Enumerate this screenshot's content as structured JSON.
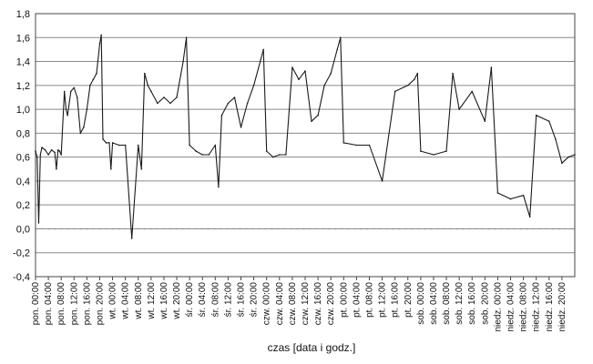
{
  "chart_data": {
    "type": "line",
    "xlabel": "czas [data i godz.]",
    "ylabel": "",
    "title": "",
    "ylim": [
      -0.4,
      1.8
    ],
    "y_ticks": [
      -0.4,
      -0.2,
      0.0,
      0.2,
      0.4,
      0.6,
      0.8,
      1.0,
      1.2,
      1.4,
      1.6,
      1.8
    ],
    "y_tick_labels": [
      "-0,4",
      "-0,2",
      "0,0",
      "0,2",
      "0,4",
      "0,6",
      "0,8",
      "1,0",
      "1,2",
      "1,4",
      "1,6",
      "1,8"
    ],
    "x_tick_labels": [
      "pon. 00:00",
      "pon. 04:00",
      "pon. 08:00",
      "pon. 12:00",
      "pon. 16:00",
      "pon. 20:00",
      "wt. 00:00",
      "wt. 04:00",
      "wt. 08:00",
      "wt. 12:00",
      "wt. 16:00",
      "wt. 20:00",
      "śr. 00:00",
      "śr. 04:00",
      "śr. 08:00",
      "śr. 12:00",
      "śr. 16:00",
      "śr. 20:00",
      "czw. 00:00",
      "czw. 04:00",
      "czw. 08:00",
      "czw. 12:00",
      "czw. 16:00",
      "czw. 20:00",
      "pt. 00:00",
      "pt. 04:00",
      "pt. 08:00",
      "pt. 12:00",
      "pt. 16:00",
      "pt. 20:00",
      "sob. 00:00",
      "sob. 04:00",
      "sob. 08:00",
      "sob. 12:00",
      "sob. 16:00",
      "sob. 20:00",
      "niedz. 00:00",
      "niedz. 04:00",
      "niedz. 08:00",
      "niedz. 12:00",
      "niedz. 16:00",
      "niedz. 20:00"
    ],
    "grid": true,
    "series": [
      {
        "x_hours": [
          0,
          0.5,
          1,
          1.5,
          2,
          3,
          4,
          5,
          6,
          6.5,
          7,
          7.5,
          8,
          9,
          9.5,
          10,
          11,
          12,
          13,
          14,
          15,
          16,
          17,
          18,
          19,
          20,
          20.5,
          21,
          22,
          23,
          23.5,
          24,
          26,
          28,
          30,
          32,
          33,
          34,
          35,
          36,
          38,
          40,
          42,
          44,
          46,
          47,
          48,
          50,
          52,
          54,
          56,
          57,
          58,
          60,
          62,
          64,
          66,
          68,
          70,
          71,
          72,
          74,
          76,
          78,
          80,
          82,
          84,
          86,
          88,
          90,
          92,
          94,
          95,
          96,
          100,
          104,
          108,
          112,
          116,
          118,
          119,
          120,
          124,
          128,
          130,
          132,
          136,
          140,
          142,
          144,
          148,
          152,
          154,
          156,
          160,
          162,
          164,
          166,
          168
        ],
        "values": [
          0.65,
          0.6,
          0.05,
          0.62,
          0.68,
          0.66,
          0.62,
          0.66,
          0.64,
          0.5,
          0.66,
          0.65,
          0.62,
          1.15,
          1.0,
          0.95,
          1.15,
          1.18,
          1.1,
          0.8,
          0.85,
          1.0,
          1.2,
          1.25,
          1.3,
          1.55,
          1.62,
          0.75,
          0.72,
          0.72,
          0.5,
          0.72,
          0.7,
          0.7,
          -0.08,
          0.7,
          0.5,
          1.3,
          1.2,
          1.15,
          1.05,
          1.1,
          1.05,
          1.1,
          1.4,
          1.6,
          0.7,
          0.65,
          0.62,
          0.62,
          0.7,
          0.35,
          0.95,
          1.05,
          1.1,
          0.85,
          1.05,
          1.2,
          1.4,
          1.5,
          0.65,
          0.6,
          0.62,
          0.62,
          1.35,
          1.25,
          1.32,
          0.9,
          0.95,
          1.2,
          1.3,
          1.5,
          1.6,
          0.72,
          0.7,
          0.7,
          0.4,
          1.15,
          1.2,
          1.25,
          1.3,
          0.65,
          0.62,
          0.65,
          1.3,
          1.0,
          1.15,
          0.9,
          1.35,
          0.3,
          0.25,
          0.28,
          0.1,
          0.95,
          0.9,
          0.75,
          0.55,
          0.6,
          0.62
        ]
      }
    ]
  }
}
